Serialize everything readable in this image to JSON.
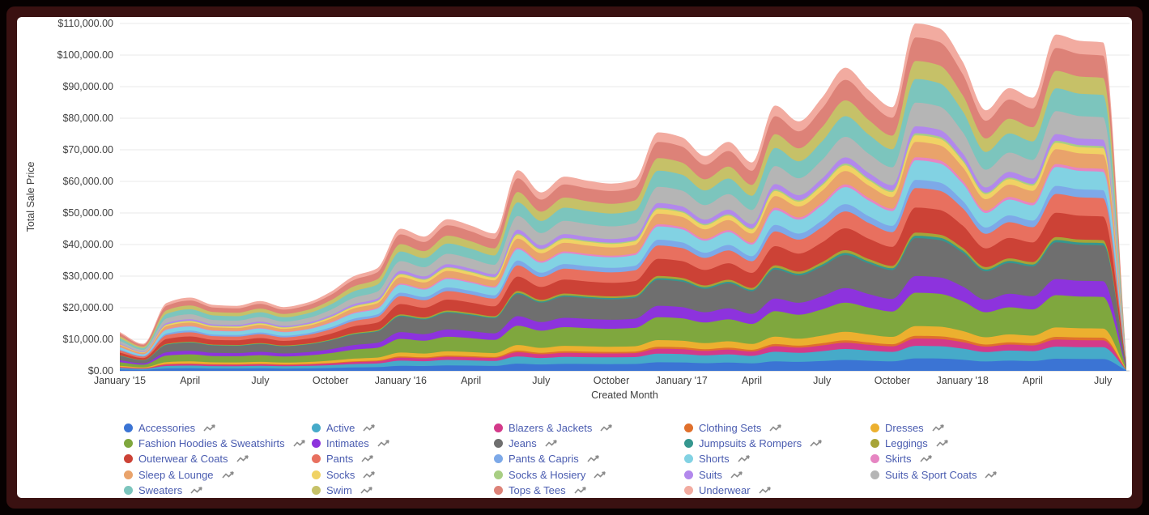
{
  "frame": {
    "outer_color": "#070101",
    "border_color": "#3a1111",
    "card_color": "#ffffff"
  },
  "chart_data": {
    "type": "area",
    "stacked": true,
    "title": "",
    "xlabel": "Created Month",
    "ylabel": "Total Sale Price",
    "ylim": [
      0,
      110000
    ],
    "grid": true,
    "legend_position": "bottom",
    "legend_columns": 5,
    "legend_label_color": "#4a5cb0",
    "y_tick_labels": [
      "$0.00",
      "$10,000.00",
      "$20,000.00",
      "$30,000.00",
      "$40,000.00",
      "$50,000.00",
      "$60,000.00",
      "$70,000.00",
      "$80,000.00",
      "$90,000.00",
      "$100,000.00",
      "$110,000.00"
    ],
    "x_tick_labels": [
      "January '15",
      "April",
      "July",
      "October",
      "January '16",
      "April",
      "July",
      "October",
      "January '17",
      "April",
      "July",
      "October",
      "January '18",
      "April",
      "July"
    ],
    "months": [
      "2015-01",
      "2015-02",
      "2015-03",
      "2015-04",
      "2015-05",
      "2015-06",
      "2015-07",
      "2015-08",
      "2015-09",
      "2015-10",
      "2015-11",
      "2015-12",
      "2016-01",
      "2016-02",
      "2016-03",
      "2016-04",
      "2016-05",
      "2016-06",
      "2016-07",
      "2016-08",
      "2016-09",
      "2016-10",
      "2016-11",
      "2016-12",
      "2017-01",
      "2017-02",
      "2017-03",
      "2017-04",
      "2017-05",
      "2017-06",
      "2017-07",
      "2017-08",
      "2017-09",
      "2017-10",
      "2017-11",
      "2017-12",
      "2018-01",
      "2018-02",
      "2018-03",
      "2018-04",
      "2018-05",
      "2018-06",
      "2018-07",
      "2018-08"
    ],
    "monthly_totals_usd": [
      12300,
      8600,
      21500,
      23200,
      20900,
      20600,
      22100,
      20200,
      21600,
      25000,
      30000,
      32500,
      45000,
      42500,
      48000,
      46000,
      43500,
      63500,
      56500,
      61500,
      60200,
      59300,
      60500,
      75500,
      74000,
      68000,
      72500,
      66000,
      84000,
      79000,
      86500,
      96000,
      89000,
      83500,
      110000,
      108500,
      98000,
      82500,
      89500,
      86500,
      106500,
      104500,
      104000,
      3500
    ],
    "series_note": "Stacked bottom-to-top in the order listed; per-month series value = share_of_total x monthly total (values computed at render time, estimated from band thickness).",
    "series": [
      {
        "name": "Accessories",
        "color": "#3b74d4",
        "share_of_total": 0.036
      },
      {
        "name": "Active",
        "color": "#46aac9",
        "share_of_total": 0.036
      },
      {
        "name": "Blazers & Jackets",
        "color": "#d33a8a",
        "share_of_total": 0.021
      },
      {
        "name": "Clothing Sets",
        "color": "#e0702c",
        "share_of_total": 0.008
      },
      {
        "name": "Dresses",
        "color": "#ecb02f",
        "share_of_total": 0.028
      },
      {
        "name": "Fashion Hoodies & Sweatshirts",
        "color": "#7fa73e",
        "share_of_total": 0.096
      },
      {
        "name": "Intimates",
        "color": "#8d33dd",
        "share_of_total": 0.048
      },
      {
        "name": "Jeans",
        "color": "#6f6f6f",
        "share_of_total": 0.109
      },
      {
        "name": "Jumpsuits & Rompers",
        "color": "#35978f",
        "share_of_total": 0.007
      },
      {
        "name": "Leggings",
        "color": "#a7a437",
        "share_of_total": 0.009
      },
      {
        "name": "Outerwear & Coats",
        "color": "#cc4236",
        "share_of_total": 0.072
      },
      {
        "name": "Pants",
        "color": "#e8705f",
        "share_of_total": 0.056
      },
      {
        "name": "Pants & Capris",
        "color": "#7da9e8",
        "share_of_total": 0.024
      },
      {
        "name": "Shorts",
        "color": "#82d2e3",
        "share_of_total": 0.056
      },
      {
        "name": "Skirts",
        "color": "#e685c2",
        "share_of_total": 0.009
      },
      {
        "name": "Sleep & Lounge",
        "color": "#e9a36b",
        "share_of_total": 0.044
      },
      {
        "name": "Socks",
        "color": "#f0d264",
        "share_of_total": 0.019
      },
      {
        "name": "Socks & Hosiery",
        "color": "#a8ce83",
        "share_of_total": 0.006
      },
      {
        "name": "Suits",
        "color": "#b288ec",
        "share_of_total": 0.02
      },
      {
        "name": "Suits & Sport Coats",
        "color": "#b5b5b5",
        "share_of_total": 0.068
      },
      {
        "name": "Sweaters",
        "color": "#7cc5bd",
        "share_of_total": 0.068
      },
      {
        "name": "Swim",
        "color": "#c6c168",
        "share_of_total": 0.052
      },
      {
        "name": "Tops & Tees",
        "color": "#dd8278",
        "share_of_total": 0.068
      },
      {
        "name": "Underwear",
        "color": "#f2aba0",
        "share_of_total": 0.04
      }
    ]
  }
}
